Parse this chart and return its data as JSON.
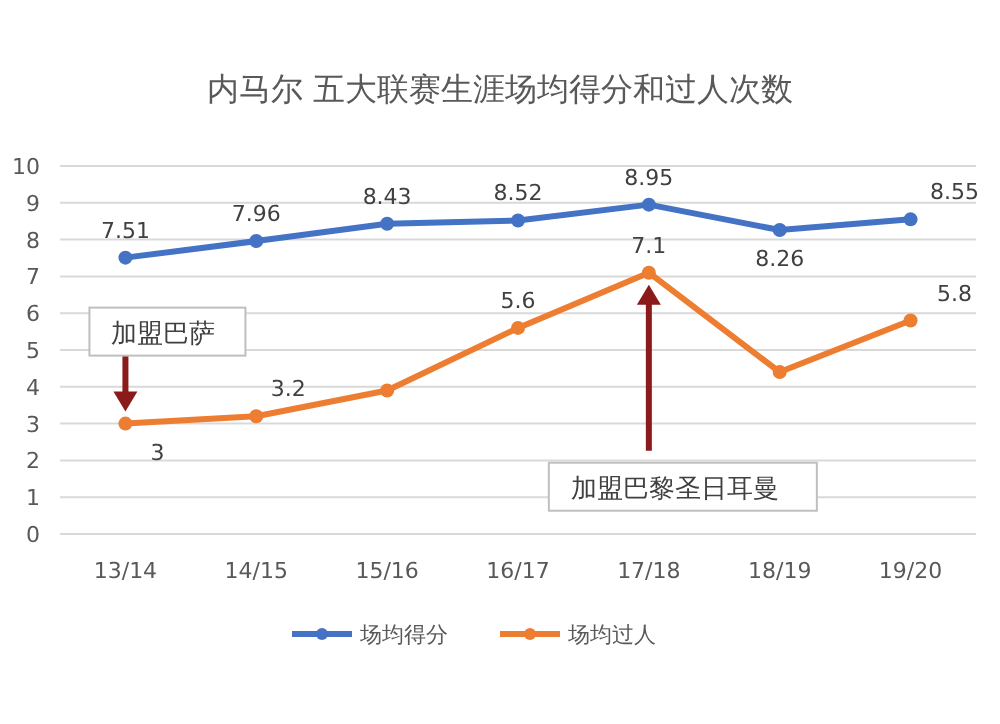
{
  "chart_data": {
    "type": "line",
    "title": "内马尔 五大联赛生涯场均得分和过人次数",
    "categories": [
      "13/14",
      "14/15",
      "15/16",
      "16/17",
      "17/18",
      "18/19",
      "19/20"
    ],
    "series": [
      {
        "name": "场均得分",
        "color": "#4472c4",
        "values": [
          7.51,
          7.96,
          8.43,
          8.52,
          8.95,
          8.26,
          8.55
        ],
        "value_labels": [
          "7.51",
          "7.96",
          "8.43",
          "8.52",
          "8.95",
          "8.26",
          "8.55"
        ]
      },
      {
        "name": "场均过人",
        "color": "#ed7d31",
        "values": [
          3,
          3.2,
          3.9,
          5.6,
          7.1,
          4.4,
          5.8
        ],
        "value_labels": [
          "3",
          "3.2",
          null,
          "5.6",
          "7.1",
          null,
          "5.8"
        ]
      }
    ],
    "ylim": [
      0,
      10
    ],
    "yticks": [
      0,
      1,
      2,
      3,
      4,
      5,
      6,
      7,
      8,
      9,
      10
    ],
    "grid": "y",
    "legend": "bottom",
    "marker": "circle",
    "line_style": "solid",
    "annotations": [
      "加盟巴萨",
      "加盟巴黎圣日耳曼"
    ]
  }
}
